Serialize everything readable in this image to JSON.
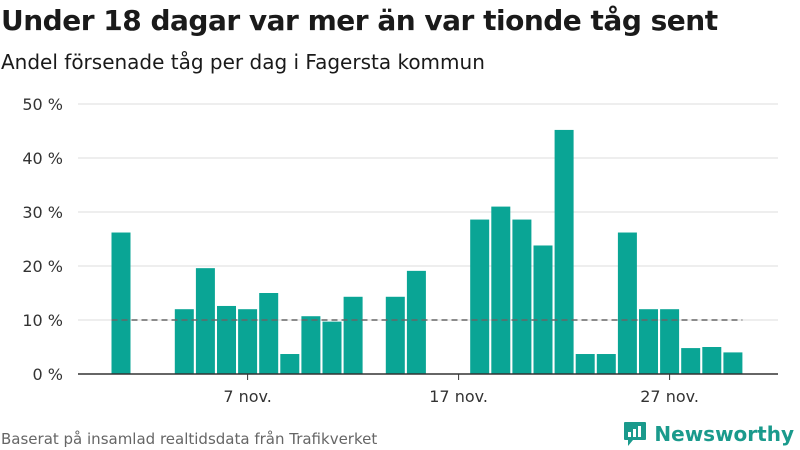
{
  "header": {
    "title": "Under 18 dagar var mer än var tionde tåg sent",
    "subtitle": "Andel försenade tåg per dag i Fagersta kommun"
  },
  "footer": {
    "source": "Baserat på insamlad realtidsdata från Trafikverket",
    "brand": "Newsworthy"
  },
  "colors": {
    "bar": "#0aa595",
    "reference_line": "#666666",
    "grid": "#dddddd",
    "brand": "#1a9a8c"
  },
  "icons": {
    "logo": "bar-chart-logo-icon"
  },
  "chart_data": {
    "type": "bar",
    "x_dates": [
      "1 nov.",
      "2 nov.",
      "3 nov.",
      "4 nov.",
      "5 nov.",
      "6 nov.",
      "7 nov.",
      "8 nov.",
      "9 nov.",
      "10 nov.",
      "11 nov.",
      "12 nov.",
      "13 nov.",
      "14 nov.",
      "15 nov.",
      "16 nov.",
      "17 nov.",
      "18 nov.",
      "19 nov.",
      "20 nov.",
      "21 nov.",
      "22 nov.",
      "23 nov.",
      "24 nov.",
      "25 nov.",
      "26 nov.",
      "27 nov.",
      "28 nov.",
      "29 nov.",
      "30 nov."
    ],
    "values": [
      26.2,
      null,
      null,
      12.0,
      19.6,
      12.6,
      12.0,
      15.0,
      3.7,
      10.7,
      9.7,
      14.3,
      null,
      14.3,
      19.1,
      null,
      null,
      28.6,
      31.0,
      28.6,
      23.8,
      45.2,
      3.7,
      3.7,
      26.2,
      12.0,
      12.0,
      4.8,
      5.0,
      4.0
    ],
    "reference_line": 10,
    "reference_range": [
      "1 nov.",
      "30 nov."
    ],
    "ylim": [
      0,
      50
    ],
    "y_ticks": [
      0,
      10,
      20,
      30,
      40,
      50
    ],
    "y_tick_labels": [
      "0 %",
      "10 %",
      "20 %",
      "30 %",
      "40 %",
      "50 %"
    ],
    "x_ticks": [
      "7 nov.",
      "17 nov.",
      "27 nov."
    ],
    "grid": true,
    "xlabel": "",
    "ylabel": ""
  }
}
